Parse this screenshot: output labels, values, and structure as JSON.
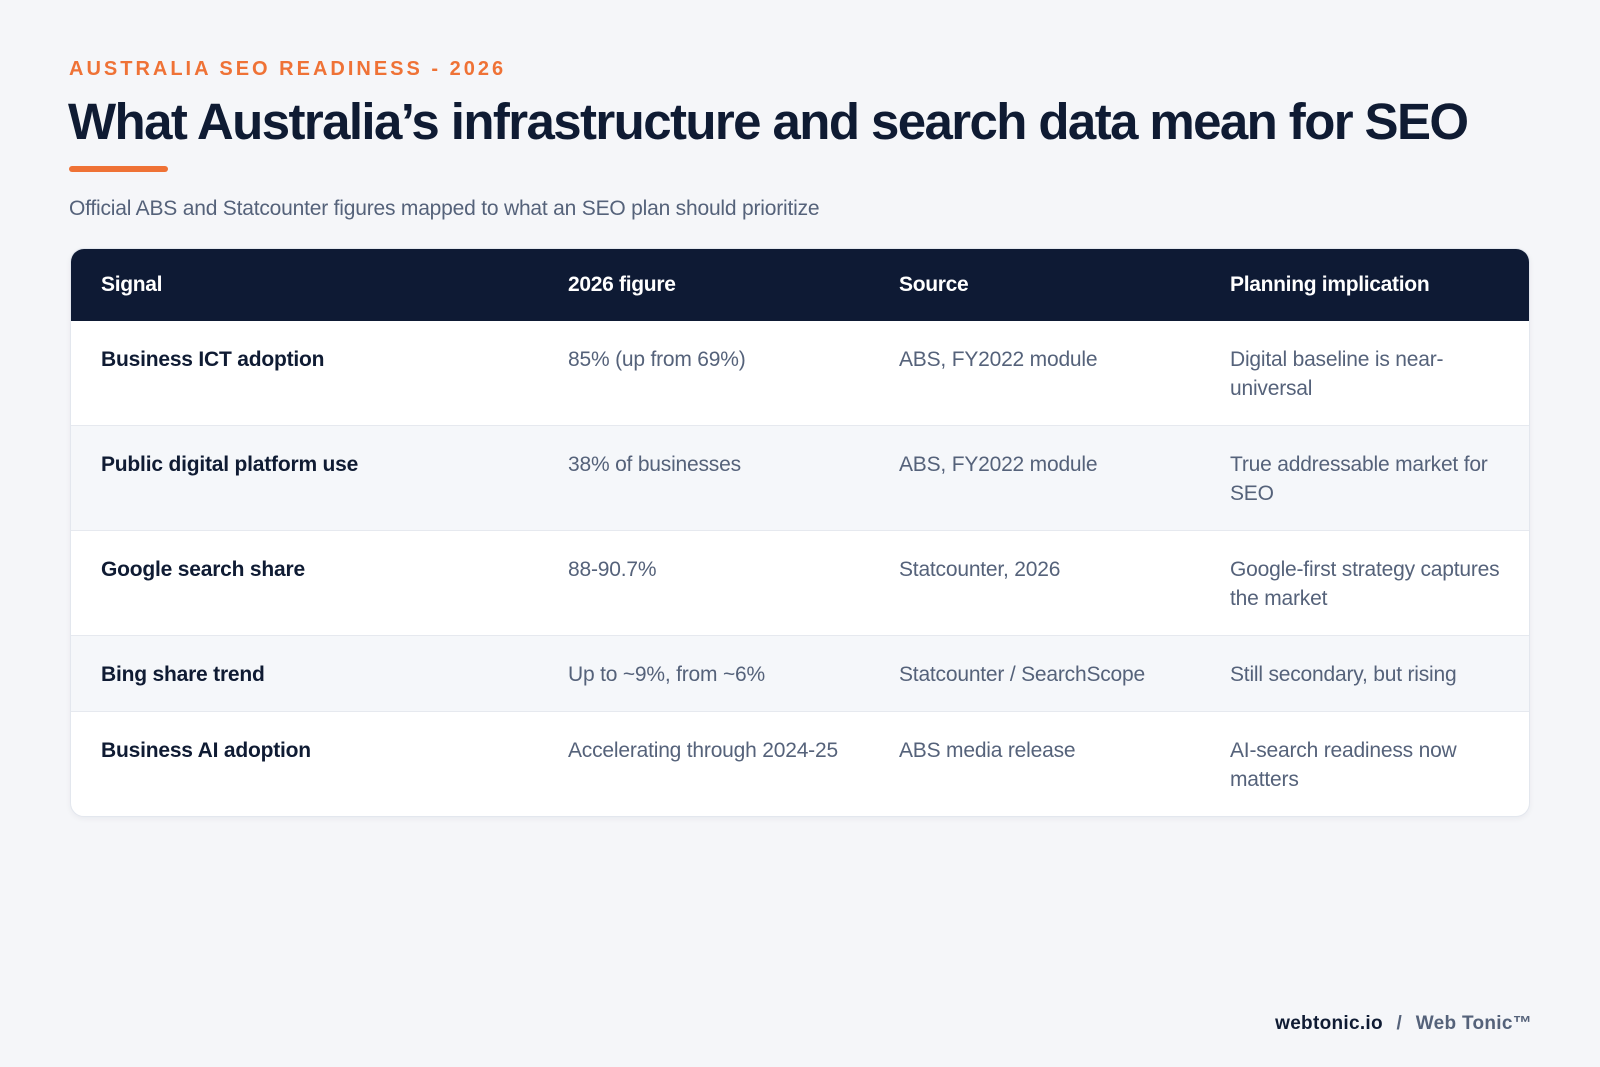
{
  "header": {
    "eyebrow": "AUSTRALIA SEO READINESS - 2026",
    "title": "What Australia’s infrastructure and search data mean for SEO",
    "subtitle": "Official ABS and Statcounter figures mapped to what an SEO plan should prioritize"
  },
  "table": {
    "columns": [
      "Signal",
      "2026 figure",
      "Source",
      "Planning implication"
    ],
    "rows": [
      {
        "signal": "Business ICT adoption",
        "figure": "85% (up from 69%)",
        "source": "ABS, FY2022 module",
        "implication": "Digital baseline is near-universal"
      },
      {
        "signal": "Public digital platform use",
        "figure": "38% of businesses",
        "source": "ABS, FY2022 module",
        "implication": "True addressable market for SEO"
      },
      {
        "signal": "Google search share",
        "figure": "88-90.7%",
        "source": "Statcounter, 2026",
        "implication": "Google-first strategy captures the market"
      },
      {
        "signal": "Bing share trend",
        "figure": "Up to ~9%, from ~6%",
        "source": "Statcounter / SearchScope",
        "implication": "Still secondary, but rising"
      },
      {
        "signal": "Business AI adoption",
        "figure": "Accelerating through 2024-25",
        "source": "ABS media release",
        "implication": "AI-search readiness now matters"
      }
    ]
  },
  "footer": {
    "domain": "webtonic.io",
    "separator": "/",
    "brand": "Web Tonic™"
  },
  "colors": {
    "accent": "#ef7236",
    "header_bg": "#0e1a34",
    "page_bg": "#f5f6f9"
  }
}
